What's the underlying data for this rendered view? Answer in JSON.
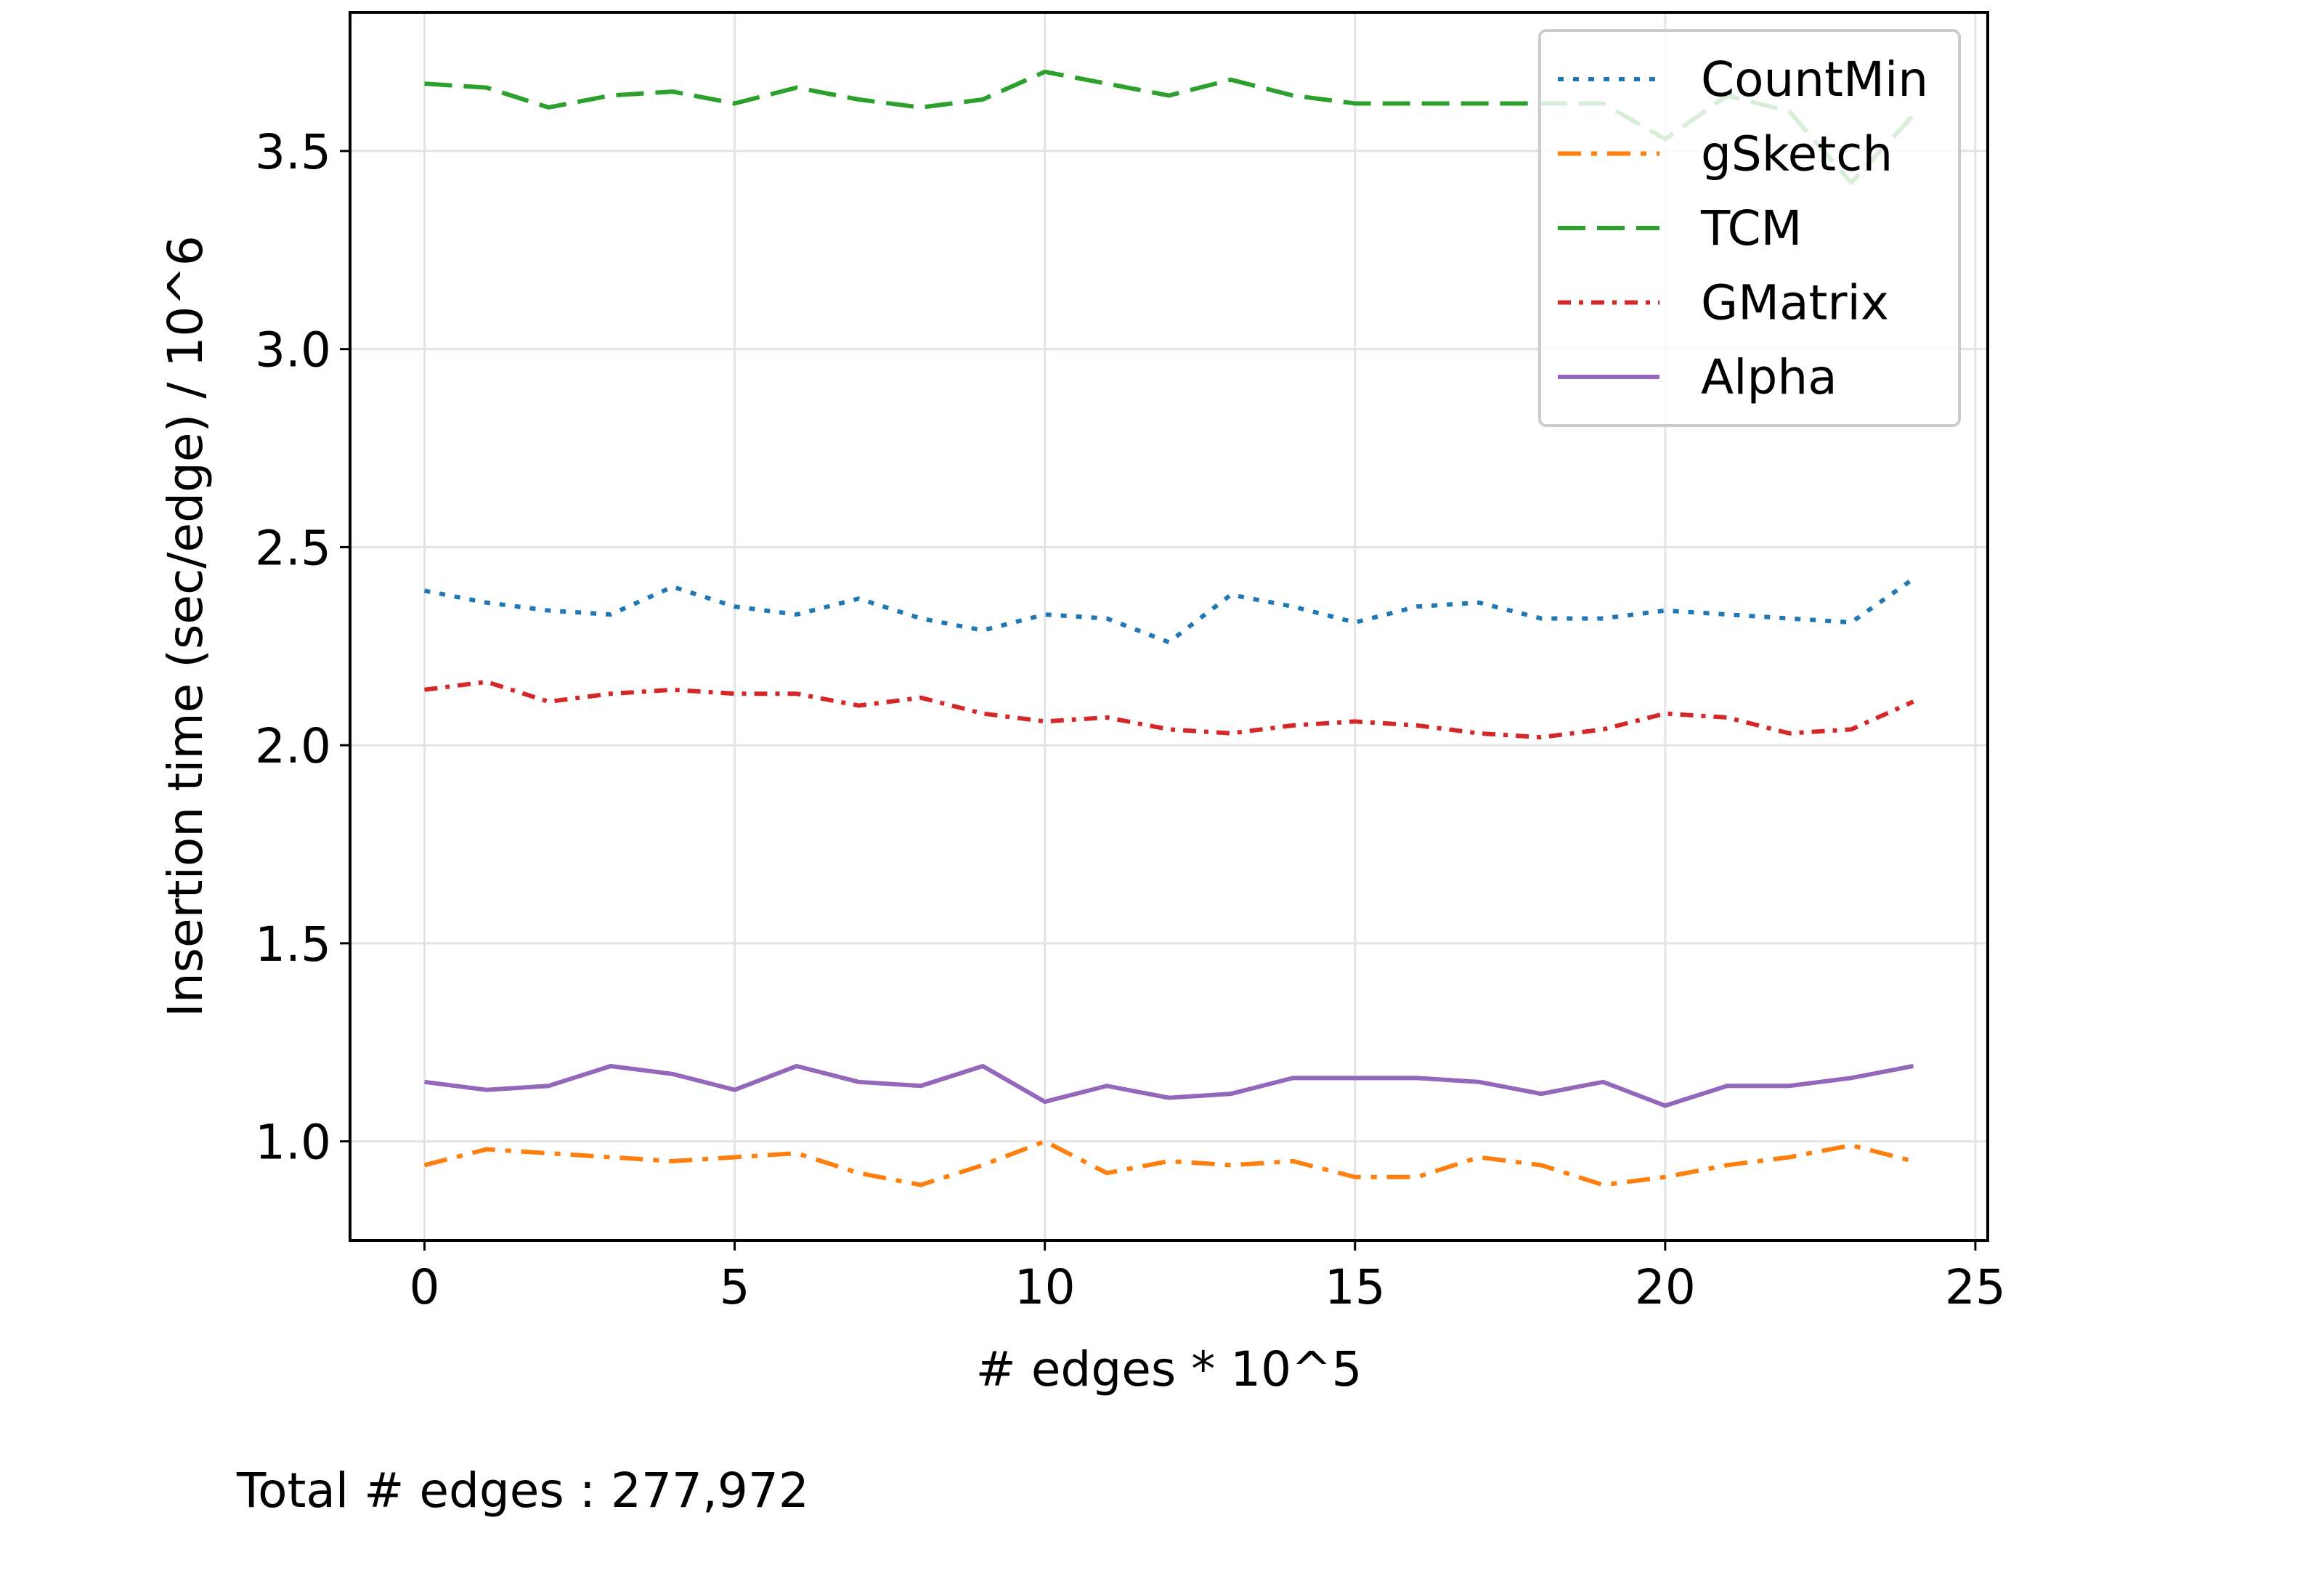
{
  "chart_data": {
    "type": "line",
    "xlabel": "# edges * 10^5",
    "ylabel": "Insertion time (sec/edge) / 10^6",
    "xlim": [
      -1.2,
      25.2
    ],
    "ylim": [
      0.75,
      3.85
    ],
    "xticks": [
      0,
      5,
      10,
      15,
      20,
      25
    ],
    "yticks": [
      1.0,
      1.5,
      2.0,
      2.5,
      3.0,
      3.5
    ],
    "xtick_labels": [
      "0",
      "5",
      "10",
      "15",
      "20",
      "25"
    ],
    "ytick_labels": [
      "1.0",
      "1.5",
      "2.0",
      "2.5",
      "3.0",
      "3.5"
    ],
    "grid": true,
    "legend_position": "top-right",
    "x": [
      0,
      1,
      2,
      3,
      4,
      5,
      6,
      7,
      8,
      9,
      10,
      11,
      12,
      13,
      14,
      15,
      16,
      17,
      18,
      19,
      20,
      21,
      22,
      23,
      24
    ],
    "series": [
      {
        "name": "CountMin",
        "color": "#1f77b4",
        "dash": "dotted",
        "values": [
          2.39,
          2.36,
          2.34,
          2.33,
          2.4,
          2.35,
          2.33,
          2.37,
          2.32,
          2.29,
          2.33,
          2.32,
          2.26,
          2.38,
          2.35,
          2.31,
          2.35,
          2.36,
          2.32,
          2.32,
          2.34,
          2.33,
          2.32,
          2.31,
          2.42
        ]
      },
      {
        "name": "gSketch",
        "color": "#ff7f0e",
        "dash": "dashdot",
        "values": [
          0.94,
          0.98,
          0.97,
          0.96,
          0.95,
          0.96,
          0.97,
          0.92,
          0.89,
          0.94,
          1.0,
          0.92,
          0.95,
          0.94,
          0.95,
          0.91,
          0.91,
          0.96,
          0.94,
          0.89,
          0.91,
          0.94,
          0.96,
          0.99,
          0.95
        ]
      },
      {
        "name": "TCM",
        "color": "#2ca02c",
        "dash": "dashed",
        "values": [
          3.67,
          3.66,
          3.61,
          3.64,
          3.65,
          3.62,
          3.66,
          3.63,
          3.61,
          3.63,
          3.7,
          3.67,
          3.64,
          3.68,
          3.64,
          3.62,
          3.62,
          3.62,
          3.62,
          3.62,
          3.53,
          3.64,
          3.6,
          3.42,
          3.59
        ]
      },
      {
        "name": "GMatrix",
        "color": "#d62728",
        "dash": "densedashdot",
        "values": [
          2.14,
          2.16,
          2.11,
          2.13,
          2.14,
          2.13,
          2.13,
          2.1,
          2.12,
          2.08,
          2.06,
          2.07,
          2.04,
          2.03,
          2.05,
          2.06,
          2.05,
          2.03,
          2.02,
          2.04,
          2.08,
          2.07,
          2.03,
          2.04,
          2.11
        ]
      },
      {
        "name": "Alpha",
        "color": "#9467bd",
        "dash": "solid",
        "values": [
          1.15,
          1.13,
          1.14,
          1.19,
          1.17,
          1.13,
          1.19,
          1.15,
          1.14,
          1.19,
          1.1,
          1.14,
          1.11,
          1.12,
          1.16,
          1.16,
          1.16,
          1.15,
          1.12,
          1.15,
          1.09,
          1.14,
          1.14,
          1.16,
          1.19
        ]
      }
    ]
  },
  "footer": {
    "total_edges_text": "Total # edges : 277,972"
  }
}
